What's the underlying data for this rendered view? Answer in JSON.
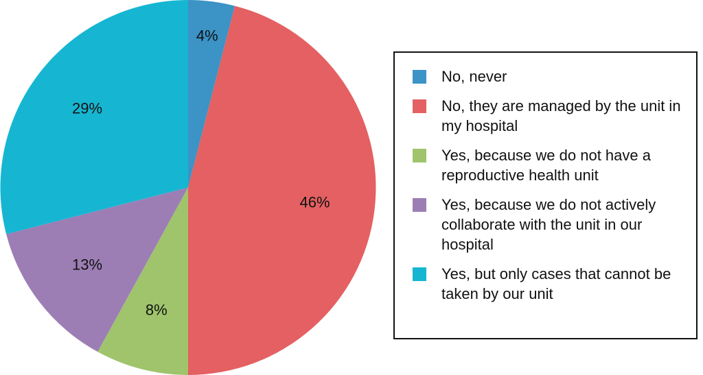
{
  "chart_data": {
    "type": "pie",
    "categories": [
      "No, never",
      "No, they are managed by the unit in my hospital",
      "Yes, because we do not have a reproductive health unit",
      "Yes, because we do not actively collaborate with the unit in our hospital",
      "Yes, but only cases that cannot be taken by our unit"
    ],
    "values": [
      4,
      46,
      8,
      13,
      29
    ],
    "value_labels": [
      "4%",
      "46%",
      "8%",
      "13%",
      "29%"
    ],
    "colors": [
      "#3b93c6",
      "#e46062",
      "#9fc46c",
      "#9c7eb4",
      "#16b6d2"
    ],
    "legend": "right"
  }
}
